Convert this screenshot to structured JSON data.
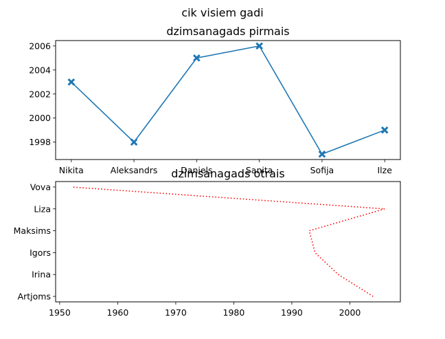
{
  "suptitle": "cik visiem gadi",
  "chart_data": [
    {
      "type": "line",
      "title": "dzimsanagads pirmais",
      "categories": [
        "Nikita",
        "Aleksandrs",
        "Daniels",
        "Sanita",
        "Sofija",
        "Ilze"
      ],
      "values": [
        2003,
        1998,
        2005,
        2006,
        1997,
        1999
      ],
      "ylim": [
        1996.55,
        2006.45
      ],
      "yticks": [
        1998,
        2000,
        2002,
        2004,
        2006
      ],
      "marker": "X",
      "line_style": "solid",
      "color": "#1f77b4"
    },
    {
      "type": "line",
      "orientation": "horizontal",
      "title": "dzimsanagads otrais",
      "categories": [
        "Artjoms",
        "Irina",
        "Igors",
        "Maksims",
        "Liza",
        "Vova"
      ],
      "values": [
        2004,
        1998,
        1994,
        1993,
        2006,
        1952
      ],
      "xlim": [
        1949.3,
        2008.7
      ],
      "xticks": [
        1950,
        1960,
        1970,
        1980,
        1990,
        2000
      ],
      "line_style": "dotted",
      "color": "#ff0000"
    }
  ]
}
